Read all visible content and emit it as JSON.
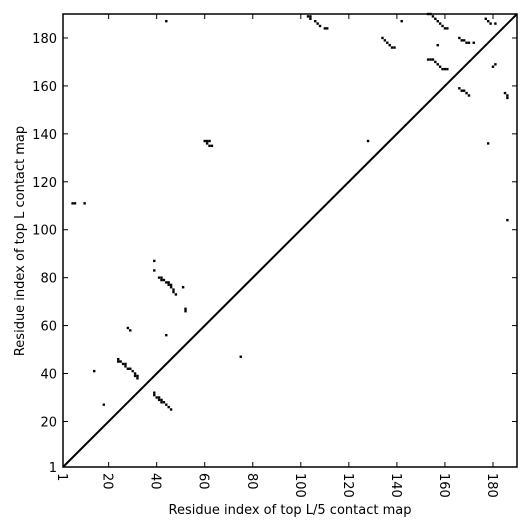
{
  "chart_data": {
    "type": "scatter",
    "xlabel": "Residue index of top L/5 contact map",
    "ylabel": "Residue index of top L contact map",
    "color": "#000000",
    "xlim": [
      1,
      190
    ],
    "ylim": [
      1,
      190
    ],
    "xticks": [
      1,
      20,
      40,
      60,
      80,
      100,
      120,
      140,
      160,
      180
    ],
    "yticks": [
      1,
      20,
      40,
      60,
      80,
      100,
      120,
      140,
      160,
      180
    ],
    "x": [
      5,
      6,
      10,
      14,
      18,
      24,
      24,
      25,
      26,
      27,
      27,
      28,
      29,
      30,
      31,
      31,
      32,
      32,
      28,
      29,
      39,
      39,
      41,
      42,
      42,
      43,
      44,
      45,
      45,
      46,
      46,
      47,
      47,
      48,
      44,
      51,
      52,
      52,
      39,
      39,
      40,
      41,
      41,
      42,
      42,
      43,
      44,
      45,
      46,
      44,
      60,
      61,
      62,
      61,
      62,
      63,
      75,
      103,
      104,
      104,
      106,
      107,
      108,
      110,
      111,
      128,
      134,
      135,
      136,
      137,
      138,
      139,
      142,
      153,
      154,
      155,
      156,
      157,
      158,
      159,
      160,
      161,
      157,
      153,
      154,
      155,
      156,
      157,
      158,
      159,
      160,
      161,
      166,
      167,
      168,
      169,
      170,
      172,
      166,
      167,
      168,
      169,
      170,
      177,
      178,
      179,
      181,
      178,
      180,
      181,
      185,
      186,
      186,
      186
    ],
    "y": [
      111,
      111,
      111,
      41,
      27,
      46,
      45,
      45,
      44,
      44,
      43,
      42,
      42,
      41,
      40,
      39,
      39,
      38,
      59,
      58,
      87,
      83,
      80,
      80,
      79,
      79,
      78,
      78,
      77,
      77,
      76,
      75,
      74,
      73,
      56,
      76,
      67,
      66,
      32,
      31,
      30,
      30,
      29,
      29,
      28,
      28,
      27,
      26,
      25,
      187,
      137,
      137,
      137,
      136,
      135,
      135,
      47,
      189,
      189,
      188,
      187,
      186,
      185,
      184,
      184,
      137,
      180,
      179,
      178,
      177,
      176,
      176,
      187,
      190,
      190,
      189,
      188,
      187,
      186,
      185,
      184,
      184,
      177,
      171,
      171,
      171,
      170,
      169,
      168,
      167,
      167,
      167,
      180,
      179,
      179,
      178,
      178,
      178,
      159,
      158,
      158,
      157,
      156,
      188,
      187,
      186,
      186,
      136,
      168,
      169,
      157,
      156,
      155,
      104
    ]
  }
}
